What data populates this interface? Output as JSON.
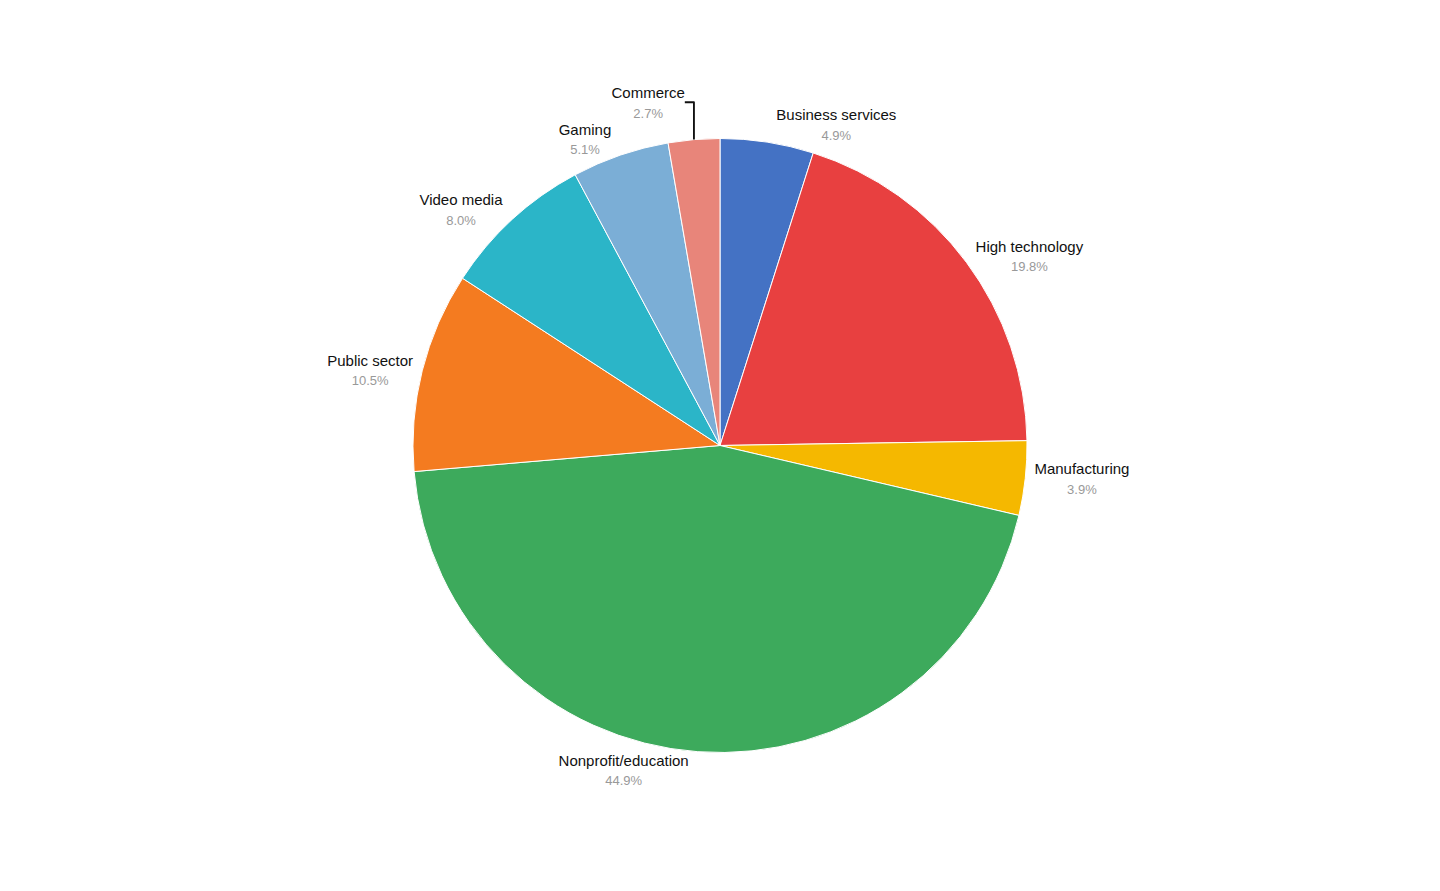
{
  "chart_data": {
    "type": "pie",
    "categories": [
      "Business services",
      "High technology",
      "Manufacturing",
      "Nonprofit/education",
      "Public sector",
      "Video media",
      "Gaming",
      "Commerce"
    ],
    "values": [
      4.9,
      19.8,
      3.9,
      44.9,
      10.5,
      8.0,
      5.1,
      2.7
    ],
    "value_labels": [
      "4.9%",
      "19.8%",
      "3.9%",
      "44.9%",
      "10.5%",
      "8.0%",
      "5.1%",
      "2.7%"
    ],
    "colors": [
      "#4472C4",
      "#E84040",
      "#F5B800",
      "#3DAA5C",
      "#F47B20",
      "#2BB5C8",
      "#7BAED6",
      "#E8857A"
    ],
    "data_labels": true
  }
}
